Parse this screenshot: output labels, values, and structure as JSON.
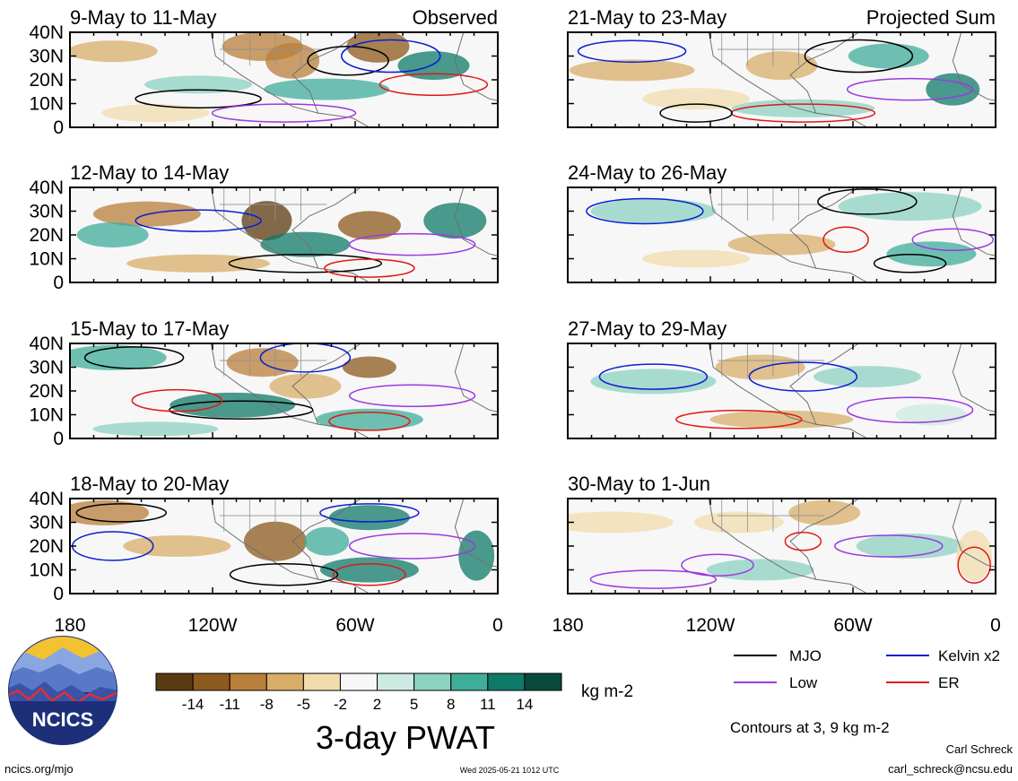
{
  "map": {
    "lon_ticks": [
      "180",
      "120W",
      "60W",
      "0"
    ],
    "lat_ticks": [
      "0",
      "10N",
      "20N",
      "30N",
      "40N"
    ],
    "lon_range": [
      -180,
      0
    ],
    "lat_range": [
      0,
      40
    ]
  },
  "panels": [
    {
      "title": "9-May to 11-May",
      "annotation": "Observed",
      "column": "observed",
      "row": 0
    },
    {
      "title": "12-May to 14-May",
      "annotation": "",
      "column": "observed",
      "row": 1
    },
    {
      "title": "15-May to 17-May",
      "annotation": "",
      "column": "observed",
      "row": 2
    },
    {
      "title": "18-May to 20-May",
      "annotation": "",
      "column": "observed",
      "row": 3
    },
    {
      "title": "21-May to 23-May",
      "annotation": "Projected Sum",
      "column": "projected",
      "row": 0
    },
    {
      "title": "24-May to 26-May",
      "annotation": "",
      "column": "projected",
      "row": 1
    },
    {
      "title": "27-May to 29-May",
      "annotation": "",
      "column": "projected",
      "row": 2
    },
    {
      "title": "30-May to 1-Jun",
      "annotation": "",
      "column": "projected",
      "row": 3
    }
  ],
  "colorbar": {
    "labels": [
      "-14",
      "-11",
      "-8",
      "-5",
      "-2",
      "2",
      "5",
      "8",
      "11",
      "14"
    ],
    "colors": [
      "#5a3a10",
      "#8c5a1c",
      "#b97f3a",
      "#d8ae68",
      "#f1dcae",
      "#f7f7f7",
      "#cdeae2",
      "#8ed2c2",
      "#3fae99",
      "#0f7a68",
      "#0a4a3e"
    ],
    "units": "kg m-2",
    "title": "3-day PWAT"
  },
  "legend": {
    "items": [
      {
        "label": "MJO",
        "color": "#000000"
      },
      {
        "label": "Kelvin x2",
        "color": "#0a1fd0"
      },
      {
        "label": "Low",
        "color": "#9a3ae0"
      },
      {
        "label": "ER",
        "color": "#e01818"
      }
    ],
    "note": "Contours at 3, 9 kg m-2"
  },
  "logo": {
    "text": "NCICS"
  },
  "footer": {
    "url": "ncics.org/mjo",
    "timestamp": "Wed 2025-05-21 1012 UTC",
    "author": "Carl Schreck",
    "email": "carl_schreck@ncsu.edu"
  }
}
